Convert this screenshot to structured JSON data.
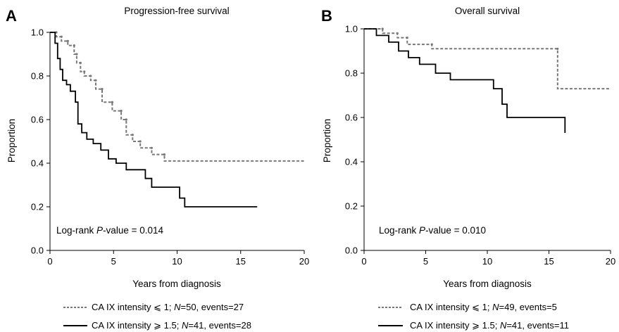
{
  "chart_data": [
    {
      "type": "line",
      "panel_letter": "A",
      "title": "Progression-free survival",
      "xlabel": "Years from diagnosis",
      "ylabel": "Proportion",
      "xlim": [
        0,
        20
      ],
      "ylim": [
        0,
        1
      ],
      "xticks": [
        "0",
        "5",
        "10",
        "15",
        "20"
      ],
      "yticks": [
        "0.0",
        "0.2",
        "0.4",
        "0.6",
        "0.8",
        "1.0"
      ],
      "annotation": {
        "prefix": "Log-rank ",
        "italic": "P",
        "suffix": "-value = 0.014"
      },
      "series": [
        {
          "legend": {
            "before": "CA IX intensity ⩽ 1; ",
            "italic": "N",
            "after": "=50, events=27"
          },
          "style": "dashed",
          "color": "#777777",
          "x": [
            0,
            0.5,
            0.9,
            1.4,
            1.9,
            2.1,
            2.4,
            2.7,
            3.2,
            3.6,
            4.1,
            4.9,
            5.6,
            6.0,
            6.5,
            7.1,
            8.0,
            9.0,
            20.0
          ],
          "y": [
            1.0,
            0.98,
            0.96,
            0.94,
            0.9,
            0.86,
            0.82,
            0.8,
            0.78,
            0.74,
            0.68,
            0.64,
            0.6,
            0.53,
            0.5,
            0.47,
            0.44,
            0.41,
            0.41
          ]
        },
        {
          "legend": {
            "before": "CA IX intensity ⩾ 1.5; ",
            "italic": "N",
            "after": "=41, events=28"
          },
          "style": "solid",
          "color": "#000000",
          "x": [
            0,
            0.4,
            0.6,
            0.8,
            1.0,
            1.3,
            1.6,
            2.0,
            2.2,
            2.5,
            2.9,
            3.4,
            4.0,
            4.6,
            5.2,
            6.0,
            7.5,
            8.0,
            10.2,
            10.6,
            16.3
          ],
          "y": [
            1.0,
            0.95,
            0.88,
            0.83,
            0.78,
            0.76,
            0.73,
            0.68,
            0.58,
            0.54,
            0.51,
            0.49,
            0.46,
            0.42,
            0.4,
            0.37,
            0.33,
            0.29,
            0.24,
            0.2,
            0.2
          ]
        }
      ]
    },
    {
      "type": "line",
      "panel_letter": "B",
      "title": "Overall survival",
      "xlabel": "Years from diagnosis",
      "ylabel": "Proportion",
      "xlim": [
        0,
        20
      ],
      "ylim": [
        0,
        1
      ],
      "xticks": [
        "0",
        "5",
        "10",
        "15",
        "20"
      ],
      "yticks": [
        "0.0",
        "0.2",
        "0.4",
        "0.6",
        "0.8",
        "1.0"
      ],
      "annotation": {
        "prefix": "Log-rank ",
        "italic": "P",
        "suffix": "-value = 0.010"
      },
      "series": [
        {
          "legend": {
            "before": "CA IX intensity ⩽ 1; ",
            "italic": "N",
            "after": "=49, events=5"
          },
          "style": "dashed",
          "color": "#777777",
          "x": [
            0,
            1.5,
            2.7,
            3.5,
            5.5,
            15.7,
            20.0
          ],
          "y": [
            1.0,
            0.98,
            0.96,
            0.93,
            0.91,
            0.73,
            0.73
          ]
        },
        {
          "legend": {
            "before": "CA IX intensity  ⩾ 1.5; ",
            "italic": "N",
            "after": "=41, events=11"
          },
          "style": "solid",
          "color": "#000000",
          "x": [
            0,
            1.0,
            2.0,
            2.8,
            3.6,
            4.5,
            5.8,
            7.0,
            10.5,
            11.2,
            11.6,
            16.3
          ],
          "y": [
            1.0,
            0.97,
            0.94,
            0.9,
            0.87,
            0.84,
            0.8,
            0.77,
            0.73,
            0.66,
            0.6,
            0.53
          ]
        }
      ]
    }
  ]
}
